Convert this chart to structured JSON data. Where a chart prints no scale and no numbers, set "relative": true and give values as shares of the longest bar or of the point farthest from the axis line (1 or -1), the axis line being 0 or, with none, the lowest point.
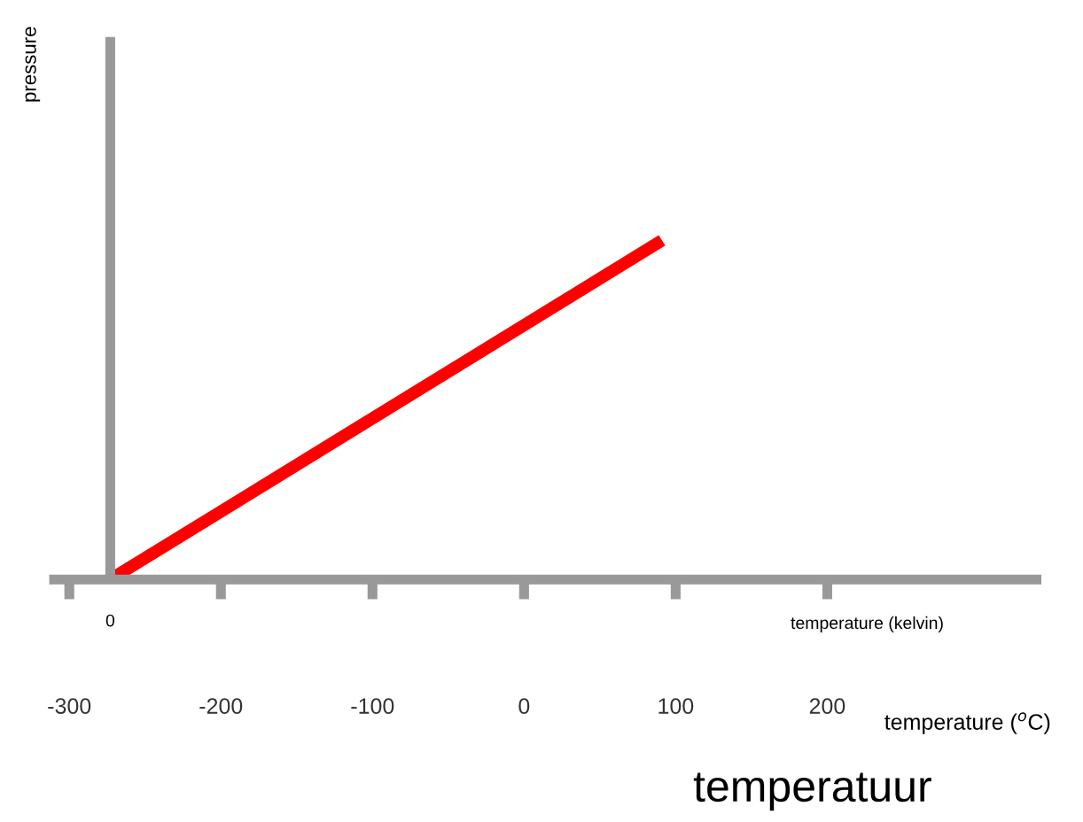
{
  "chart_data": {
    "type": "line",
    "relative": true,
    "xlabel": "temperature ($^{o}$C)",
    "xlim": [
      -310,
      338
    ],
    "xticks": [
      -300,
      -200,
      -100,
      0,
      100,
      200
    ],
    "ref_lines": [
      {
        "axis": "x",
        "value": -273,
        "color": "#999999"
      }
    ],
    "series": [
      {
        "color": "#ff0000",
        "x": [
          -273,
          91
        ],
        "values": [
          0,
          1
        ]
      }
    ],
    "annotations": [
      {
        "text": "0",
        "x": -273,
        "y": 0
      },
      "temperature (kelvin)",
      "temperatuur",
      "pressure"
    ],
    "grid": false,
    "marker": "none",
    "line_style": "solid"
  }
}
